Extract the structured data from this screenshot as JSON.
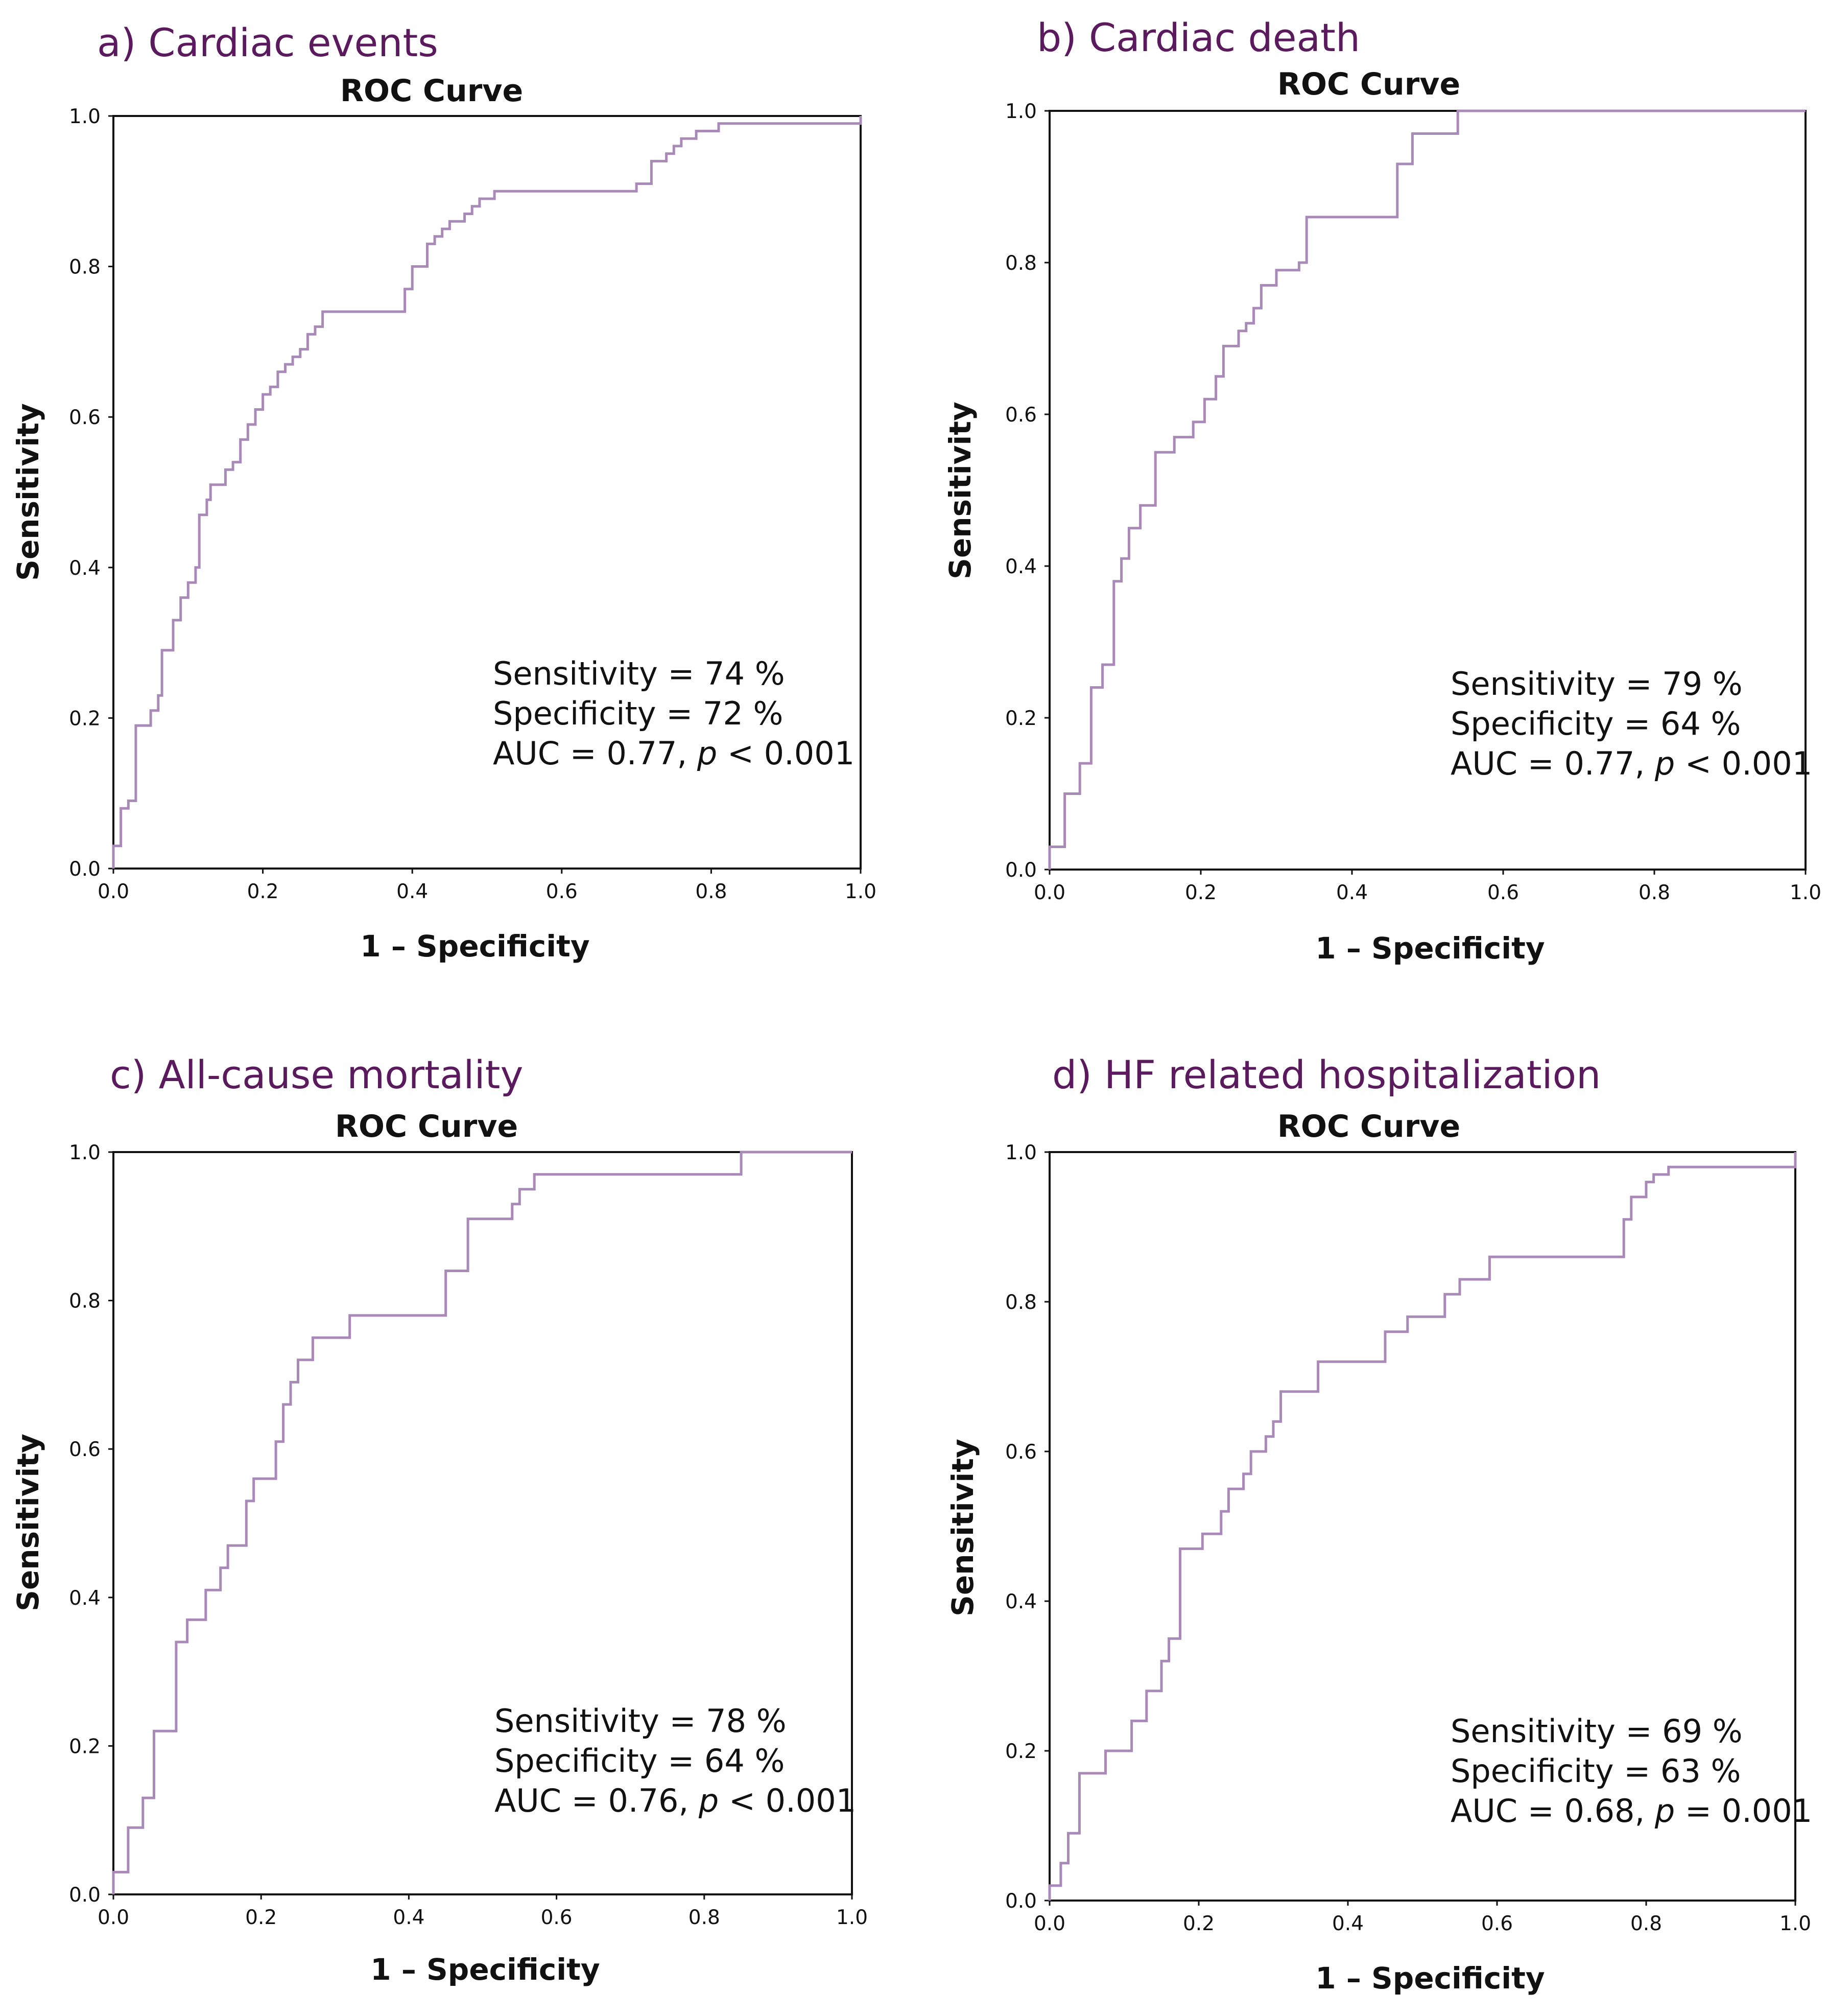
{
  "colors": {
    "roc_line": "#a989b8",
    "panel_title": "#5b1a5e"
  },
  "chart_data": [
    {
      "type": "line",
      "panel_title": "a) Cardiac events",
      "title": "ROC Curve",
      "xlabel": "1 – Specificity",
      "ylabel": "Sensitivity",
      "xlim": [
        0,
        1
      ],
      "ylim": [
        0,
        1
      ],
      "xticks": [
        "0.0",
        "0.2",
        "0.4",
        "0.6",
        "0.8",
        "1.0"
      ],
      "yticks": [
        "0.0",
        "0.2",
        "0.4",
        "0.6",
        "0.8",
        "1.0"
      ],
      "grid": false,
      "stats": {
        "sensitivity": "Sensitivity = 74 %",
        "specificity": "Specificity = 72 %",
        "auc_prefix": "AUC = 0.77, ",
        "p_symbol": "p",
        "p_value": " < 0.001"
      },
      "series": [
        {
          "x": [
            0.0,
            0.0,
            0.01,
            0.01,
            0.02,
            0.02,
            0.03,
            0.03,
            0.05,
            0.05,
            0.06,
            0.06,
            0.065,
            0.065,
            0.08,
            0.08,
            0.09,
            0.09,
            0.1,
            0.1,
            0.11,
            0.11,
            0.115,
            0.115,
            0.125,
            0.125,
            0.13,
            0.13,
            0.15,
            0.15,
            0.16,
            0.16,
            0.17,
            0.17,
            0.18,
            0.18,
            0.19,
            0.19,
            0.2,
            0.2,
            0.21,
            0.21,
            0.22,
            0.22,
            0.23,
            0.23,
            0.24,
            0.24,
            0.25,
            0.25,
            0.26,
            0.26,
            0.27,
            0.27,
            0.28,
            0.28,
            0.39,
            0.39,
            0.4,
            0.4,
            0.42,
            0.42,
            0.43,
            0.43,
            0.44,
            0.44,
            0.45,
            0.45,
            0.47,
            0.47,
            0.48,
            0.48,
            0.49,
            0.49,
            0.51,
            0.51,
            0.7,
            0.7,
            0.72,
            0.72,
            0.74,
            0.74,
            0.75,
            0.75,
            0.76,
            0.76,
            0.78,
            0.78,
            0.81,
            0.81,
            0.99,
            0.99,
            1.0,
            1.0
          ],
          "y": [
            0.0,
            0.03,
            0.03,
            0.08,
            0.08,
            0.09,
            0.09,
            0.19,
            0.19,
            0.21,
            0.21,
            0.23,
            0.23,
            0.29,
            0.29,
            0.33,
            0.33,
            0.36,
            0.36,
            0.38,
            0.38,
            0.4,
            0.4,
            0.47,
            0.47,
            0.49,
            0.49,
            0.51,
            0.51,
            0.53,
            0.53,
            0.54,
            0.54,
            0.57,
            0.57,
            0.59,
            0.59,
            0.61,
            0.61,
            0.63,
            0.63,
            0.64,
            0.64,
            0.66,
            0.66,
            0.67,
            0.67,
            0.68,
            0.68,
            0.69,
            0.69,
            0.71,
            0.71,
            0.72,
            0.72,
            0.74,
            0.74,
            0.77,
            0.77,
            0.8,
            0.8,
            0.83,
            0.83,
            0.84,
            0.84,
            0.85,
            0.85,
            0.86,
            0.86,
            0.87,
            0.87,
            0.88,
            0.88,
            0.89,
            0.89,
            0.9,
            0.9,
            0.91,
            0.91,
            0.94,
            0.94,
            0.95,
            0.95,
            0.96,
            0.96,
            0.97,
            0.97,
            0.98,
            0.98,
            0.99,
            0.99,
            0.99,
            0.99,
            1.0
          ]
        }
      ]
    },
    {
      "type": "line",
      "panel_title": "b) Cardiac death",
      "title": "ROC Curve",
      "xlabel": "1 – Specificity",
      "ylabel": "Sensitivity",
      "xlim": [
        0,
        1
      ],
      "ylim": [
        0,
        1
      ],
      "xticks": [
        "0.0",
        "0.2",
        "0.4",
        "0.6",
        "0.8",
        "1.0"
      ],
      "yticks": [
        "0.0",
        "0.2",
        "0.4",
        "0.6",
        "0.8",
        "1.0"
      ],
      "grid": false,
      "stats": {
        "sensitivity": "Sensitivity = 79 %",
        "specificity": "Specificity = 64 %",
        "auc_prefix": "AUC = 0.77, ",
        "p_symbol": "p",
        "p_value": " < 0.001"
      },
      "series": [
        {
          "x": [
            0.0,
            0.0,
            0.02,
            0.02,
            0.04,
            0.04,
            0.055,
            0.055,
            0.07,
            0.07,
            0.085,
            0.085,
            0.095,
            0.095,
            0.105,
            0.105,
            0.12,
            0.12,
            0.14,
            0.14,
            0.165,
            0.165,
            0.19,
            0.19,
            0.205,
            0.205,
            0.22,
            0.22,
            0.23,
            0.23,
            0.25,
            0.25,
            0.26,
            0.26,
            0.27,
            0.27,
            0.28,
            0.28,
            0.3,
            0.3,
            0.33,
            0.33,
            0.34,
            0.34,
            0.46,
            0.46,
            0.48,
            0.48,
            0.54,
            0.54,
            0.85,
            0.85,
            1.0
          ],
          "y": [
            0.0,
            0.03,
            0.03,
            0.1,
            0.1,
            0.14,
            0.14,
            0.24,
            0.24,
            0.27,
            0.27,
            0.38,
            0.38,
            0.41,
            0.41,
            0.45,
            0.45,
            0.48,
            0.48,
            0.55,
            0.55,
            0.57,
            0.57,
            0.59,
            0.59,
            0.62,
            0.62,
            0.65,
            0.65,
            0.69,
            0.69,
            0.71,
            0.71,
            0.72,
            0.72,
            0.74,
            0.74,
            0.77,
            0.77,
            0.79,
            0.79,
            0.8,
            0.8,
            0.86,
            0.86,
            0.93,
            0.93,
            0.97,
            0.97,
            1.0,
            1.0,
            1.0,
            1.0
          ]
        }
      ]
    },
    {
      "type": "line",
      "panel_title": "c) All-cause mortality",
      "title": "ROC Curve",
      "xlabel": "1 – Specificity",
      "ylabel": "Sensitivity",
      "xlim": [
        0,
        1
      ],
      "ylim": [
        0,
        1
      ],
      "xticks": [
        "0.0",
        "0.2",
        "0.4",
        "0.6",
        "0.8",
        "1.0"
      ],
      "yticks": [
        "0.0",
        "0.2",
        "0.4",
        "0.6",
        "0.8",
        "1.0"
      ],
      "grid": false,
      "stats": {
        "sensitivity": "Sensitivity = 78 %",
        "specificity": "Specificity = 64 %",
        "auc_prefix": "AUC = 0.76, ",
        "p_symbol": "p",
        "p_value": " < 0.001"
      },
      "series": [
        {
          "x": [
            0.0,
            0.0,
            0.02,
            0.02,
            0.04,
            0.04,
            0.055,
            0.055,
            0.085,
            0.085,
            0.1,
            0.1,
            0.125,
            0.125,
            0.145,
            0.145,
            0.155,
            0.155,
            0.18,
            0.18,
            0.19,
            0.19,
            0.22,
            0.22,
            0.23,
            0.23,
            0.24,
            0.24,
            0.25,
            0.25,
            0.27,
            0.27,
            0.32,
            0.32,
            0.45,
            0.45,
            0.48,
            0.48,
            0.54,
            0.54,
            0.55,
            0.55,
            0.57,
            0.57,
            0.85,
            0.85,
            1.0
          ],
          "y": [
            0.0,
            0.03,
            0.03,
            0.09,
            0.09,
            0.13,
            0.13,
            0.22,
            0.22,
            0.34,
            0.34,
            0.37,
            0.37,
            0.41,
            0.41,
            0.44,
            0.44,
            0.47,
            0.47,
            0.53,
            0.53,
            0.56,
            0.56,
            0.61,
            0.61,
            0.66,
            0.66,
            0.69,
            0.69,
            0.72,
            0.72,
            0.75,
            0.75,
            0.78,
            0.78,
            0.84,
            0.84,
            0.91,
            0.91,
            0.93,
            0.93,
            0.95,
            0.95,
            0.97,
            0.97,
            1.0,
            1.0
          ]
        }
      ]
    },
    {
      "type": "line",
      "panel_title": "d) HF related hospitalization",
      "title": "ROC Curve",
      "xlabel": "1 – Specificity",
      "ylabel": "Sensitivity",
      "xlim": [
        0,
        1
      ],
      "ylim": [
        0,
        1
      ],
      "xticks": [
        "0.0",
        "0.2",
        "0.4",
        "0.6",
        "0.8",
        "1.0"
      ],
      "yticks": [
        "0.0",
        "0.2",
        "0.4",
        "0.6",
        "0.8",
        "1.0"
      ],
      "grid": false,
      "stats": {
        "sensitivity": "Sensitivity = 69 %",
        "specificity": "Specificity = 63 %",
        "auc_prefix": "AUC = 0.68, ",
        "p_symbol": "p",
        "p_value": " = 0.001"
      },
      "series": [
        {
          "x": [
            0.0,
            0.0,
            0.015,
            0.015,
            0.025,
            0.025,
            0.04,
            0.04,
            0.075,
            0.075,
            0.11,
            0.11,
            0.13,
            0.13,
            0.15,
            0.15,
            0.16,
            0.16,
            0.175,
            0.175,
            0.205,
            0.205,
            0.23,
            0.23,
            0.24,
            0.24,
            0.26,
            0.26,
            0.27,
            0.27,
            0.29,
            0.29,
            0.3,
            0.3,
            0.31,
            0.31,
            0.36,
            0.36,
            0.45,
            0.45,
            0.48,
            0.48,
            0.53,
            0.53,
            0.55,
            0.55,
            0.59,
            0.59,
            0.77,
            0.77,
            0.78,
            0.78,
            0.8,
            0.8,
            0.81,
            0.81,
            0.83,
            0.83,
            0.99,
            0.99,
            1.0,
            1.0
          ],
          "y": [
            0.0,
            0.02,
            0.02,
            0.05,
            0.05,
            0.09,
            0.09,
            0.17,
            0.17,
            0.2,
            0.2,
            0.24,
            0.24,
            0.28,
            0.28,
            0.32,
            0.32,
            0.35,
            0.35,
            0.47,
            0.47,
            0.49,
            0.49,
            0.52,
            0.52,
            0.55,
            0.55,
            0.57,
            0.57,
            0.6,
            0.6,
            0.62,
            0.62,
            0.64,
            0.64,
            0.68,
            0.68,
            0.72,
            0.72,
            0.76,
            0.76,
            0.78,
            0.78,
            0.81,
            0.81,
            0.83,
            0.83,
            0.86,
            0.86,
            0.91,
            0.91,
            0.94,
            0.94,
            0.96,
            0.96,
            0.97,
            0.97,
            0.98,
            0.98,
            0.98,
            0.98,
            1.0
          ]
        }
      ]
    }
  ]
}
